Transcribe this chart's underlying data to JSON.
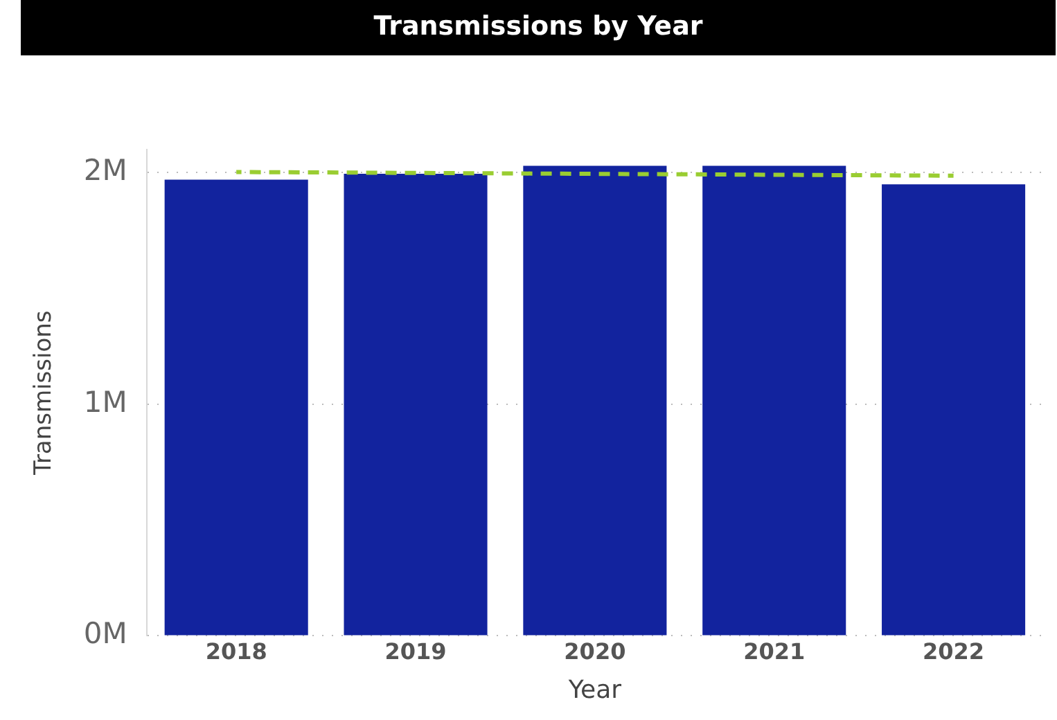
{
  "chart_data": {
    "type": "bar",
    "title": "Transmissions by Year",
    "xlabel": "Year",
    "ylabel": "Transmissions",
    "categories": [
      "2018",
      "2019",
      "2020",
      "2021",
      "2022"
    ],
    "series": [
      {
        "color": "#12239e",
        "values": [
          1970000,
          1995000,
          2030000,
          2030000,
          1950000
        ]
      },
      {
        "type": "line",
        "color": "#9acd32",
        "line_style": "dashed",
        "marker": "none",
        "values": [
          2003000,
          1999000,
          1995000,
          1991000,
          1987000
        ]
      }
    ],
    "ylim": [
      0,
      2100000
    ],
    "yticks": [
      {
        "value": 0,
        "label": "0M"
      },
      {
        "value": 1000000,
        "label": "1M"
      },
      {
        "value": 2000000,
        "label": "2M"
      }
    ],
    "grid": "y",
    "legend": false
  }
}
